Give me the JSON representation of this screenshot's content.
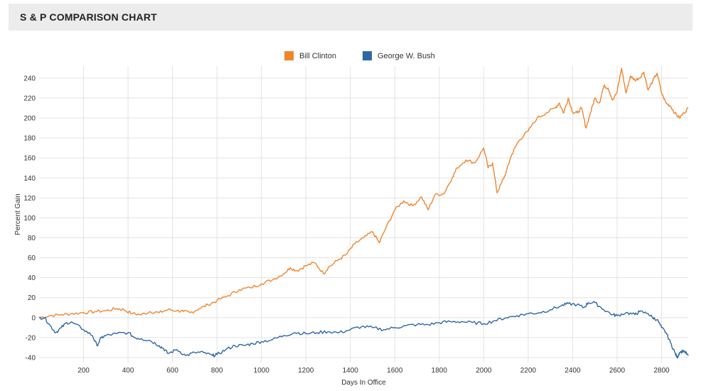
{
  "header": {
    "title": "S & P COMPARISON CHART"
  },
  "chart_data": {
    "type": "line",
    "title": "S & P COMPARISON CHART",
    "xlabel": "Days In Office",
    "ylabel": "Percent Gain",
    "xlim": [
      0,
      2920
    ],
    "ylim": [
      -45,
      252
    ],
    "x_ticks": [
      200,
      400,
      600,
      800,
      1000,
      1200,
      1400,
      1600,
      1800,
      2000,
      2200,
      2400,
      2600,
      2800
    ],
    "y_ticks": [
      -40,
      -20,
      0,
      20,
      40,
      60,
      80,
      100,
      120,
      140,
      160,
      180,
      200,
      220,
      240
    ],
    "grid": true,
    "legend": "top-center",
    "series": [
      {
        "name": "Bill Clinton",
        "color": "#f0852d",
        "x": [
          0,
          50,
          100,
          150,
          200,
          250,
          300,
          350,
          380,
          420,
          460,
          500,
          540,
          580,
          620,
          650,
          680,
          720,
          760,
          800,
          850,
          900,
          950,
          1000,
          1050,
          1100,
          1130,
          1160,
          1200,
          1240,
          1280,
          1300,
          1340,
          1380,
          1420,
          1460,
          1500,
          1530,
          1560,
          1600,
          1640,
          1680,
          1720,
          1750,
          1780,
          1820,
          1860,
          1880,
          1920,
          1960,
          2000,
          2020,
          2040,
          2060,
          2080,
          2100,
          2120,
          2140,
          2160,
          2200,
          2240,
          2280,
          2320,
          2340,
          2360,
          2380,
          2400,
          2420,
          2440,
          2460,
          2480,
          2500,
          2520,
          2540,
          2560,
          2580,
          2600,
          2620,
          2640,
          2660,
          2680,
          2700,
          2720,
          2740,
          2760,
          2780,
          2800,
          2820,
          2840,
          2860,
          2880,
          2900,
          2920
        ],
        "values": [
          0,
          2,
          3,
          4,
          5,
          6,
          7,
          9,
          8,
          4,
          3,
          6,
          5,
          8,
          7,
          6,
          5,
          9,
          13,
          17,
          22,
          28,
          30,
          34,
          38,
          44,
          50,
          47,
          52,
          55,
          44,
          50,
          57,
          63,
          74,
          80,
          86,
          75,
          90,
          108,
          117,
          112,
          121,
          108,
          123,
          124,
          141,
          150,
          158,
          155,
          170,
          150,
          155,
          125,
          135,
          145,
          160,
          170,
          178,
          187,
          200,
          205,
          210,
          215,
          205,
          220,
          206,
          205,
          210,
          190,
          205,
          220,
          215,
          232,
          230,
          218,
          226,
          250,
          225,
          242,
          238,
          240,
          246,
          228,
          237,
          245,
          225,
          215,
          212,
          205,
          200,
          205,
          210
        ]
      },
      {
        "name": "George W. Bush",
        "color": "#2e67a6",
        "x": [
          0,
          25,
          50,
          75,
          100,
          125,
          150,
          200,
          240,
          260,
          280,
          300,
          350,
          400,
          430,
          460,
          500,
          540,
          560,
          580,
          620,
          660,
          700,
          740,
          780,
          800,
          840,
          880,
          920,
          960,
          1000,
          1050,
          1100,
          1150,
          1200,
          1250,
          1300,
          1350,
          1400,
          1450,
          1500,
          1550,
          1600,
          1650,
          1700,
          1750,
          1800,
          1850,
          1900,
          1950,
          2000,
          2050,
          2100,
          2150,
          2200,
          2250,
          2300,
          2350,
          2380,
          2420,
          2450,
          2470,
          2500,
          2540,
          2580,
          2600,
          2640,
          2680,
          2700,
          2740,
          2760,
          2780,
          2800,
          2820,
          2840,
          2860,
          2870,
          2880,
          2900,
          2920
        ],
        "values": [
          0,
          0,
          -8,
          -15,
          -10,
          -5,
          -5,
          -12,
          -18,
          -28,
          -20,
          -18,
          -16,
          -15,
          -20,
          -21,
          -23,
          -28,
          -31,
          -36,
          -32,
          -38,
          -35,
          -35,
          -38,
          -37,
          -32,
          -28,
          -28,
          -26,
          -24,
          -22,
          -18,
          -15,
          -16,
          -15,
          -14,
          -15,
          -12,
          -9,
          -10,
          -12,
          -10,
          -8,
          -7,
          -7,
          -5,
          -4,
          -4,
          -5,
          -6,
          -3,
          0,
          2,
          4,
          5,
          8,
          12,
          14,
          13,
          10,
          15,
          15,
          8,
          3,
          2,
          5,
          3,
          6,
          4,
          0,
          -2,
          -10,
          -15,
          -25,
          -35,
          -40,
          -35,
          -33,
          -38
        ]
      }
    ]
  }
}
